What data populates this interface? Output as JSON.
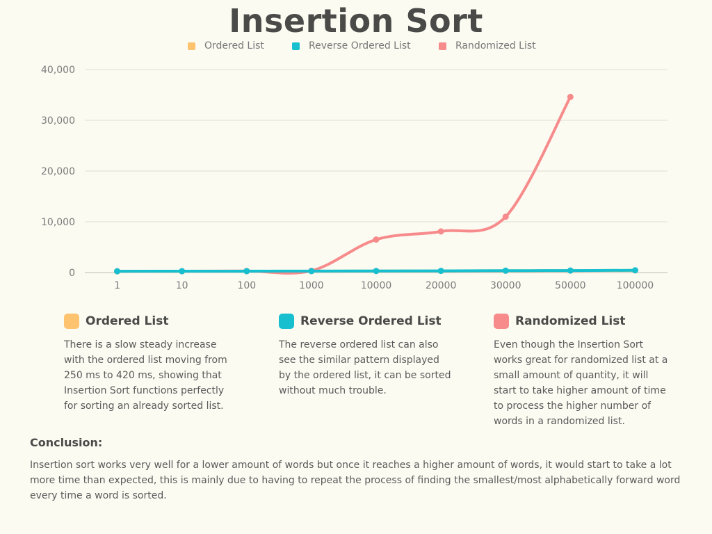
{
  "chart_data": {
    "type": "line",
    "title": "Insertion Sort",
    "categories": [
      "1",
      "10",
      "100",
      "1000",
      "10000",
      "20000",
      "30000",
      "50000",
      "100000"
    ],
    "y_ticks": [
      "0",
      "10,000",
      "20,000",
      "30,000",
      "40,000"
    ],
    "ylim": [
      0,
      40000
    ],
    "grid": true,
    "legend_position": "top-center",
    "series": [
      {
        "name": "Ordered List",
        "color": "#fdc36e",
        "values": [
          250,
          260,
          270,
          280,
          300,
          320,
          360,
          380,
          420
        ]
      },
      {
        "name": "Reverse Ordered List",
        "color": "#17bfcf",
        "values": [
          260,
          270,
          280,
          290,
          310,
          330,
          370,
          400,
          450
        ]
      },
      {
        "name": "Randomized List",
        "color": "#f78b8b",
        "values": [
          250,
          270,
          300,
          350,
          6500,
          8100,
          11000,
          34600,
          null
        ]
      }
    ]
  },
  "legend": {
    "items": [
      {
        "label": "Ordered List",
        "color": "#fdc36e"
      },
      {
        "label": "Reverse Ordered List",
        "color": "#17bfcf"
      },
      {
        "label": "Randomized List",
        "color": "#f78b8b"
      }
    ]
  },
  "descriptions": [
    {
      "title": "Ordered List",
      "color": "#fdc36e",
      "text": "There is a slow steady increase with the ordered list moving from 250 ms to 420 ms, showing that Insertion Sort functions perfectly for sorting an already sorted list."
    },
    {
      "title": "Reverse Ordered List",
      "color": "#17bfcf",
      "text": "The reverse ordered list can also see the similar pattern displayed by the ordered list, it can be sorted without much trouble."
    },
    {
      "title": "Randomized List",
      "color": "#f78b8b",
      "text": "Even though the Insertion Sort works great for randomized list at a small amount of quantity, it will start to take higher amount of time to process the higher number of words in a randomized list."
    }
  ],
  "conclusion": {
    "title": "Conclusion:",
    "text": "Insertion sort works very well for a lower amount of words but once it reaches a higher amount of words, it would start to take a lot more time than expected, this is mainly due to having to repeat the process of finding the smallest/most alphabetically forward word every time a word is sorted."
  }
}
